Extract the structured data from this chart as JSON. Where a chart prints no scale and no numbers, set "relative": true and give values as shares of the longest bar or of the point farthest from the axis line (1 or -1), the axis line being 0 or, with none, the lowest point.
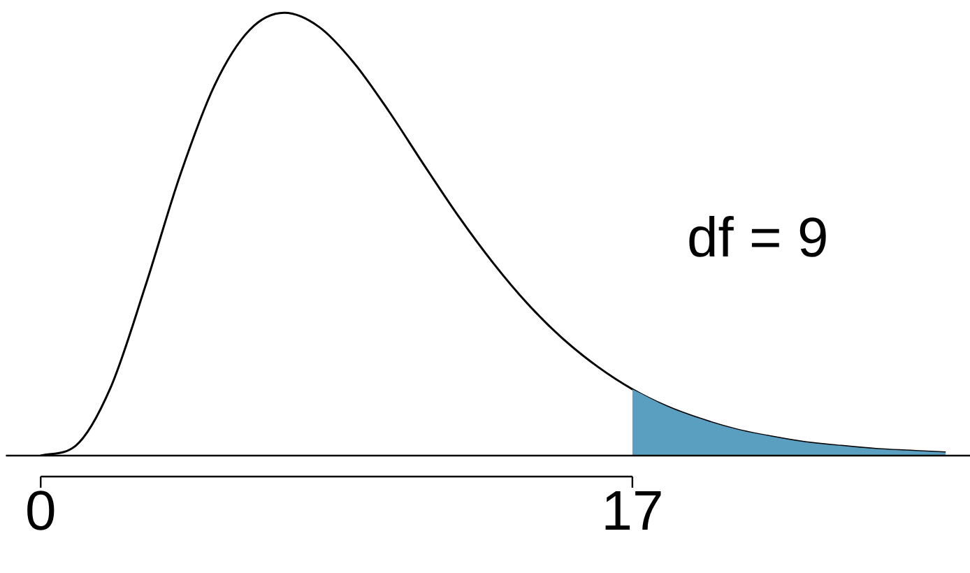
{
  "chart_data": {
    "type": "line",
    "relative": true,
    "xlim": [
      -1,
      26.7
    ],
    "xticks": [
      0,
      17
    ],
    "annotations": [
      "df = 9"
    ],
    "series": [
      {
        "type": "area",
        "color": "#5a9ec0",
        "x": [
          17,
          18,
          19,
          20,
          21,
          22,
          23,
          24,
          25,
          26
        ],
        "values": [
          0.15,
          0.111,
          0.082,
          0.059,
          0.043,
          0.03,
          0.022,
          0.015,
          0.011,
          0.007
        ]
      },
      {
        "color": "#000000",
        "x": [
          0,
          1,
          2,
          3,
          4,
          5,
          6,
          7,
          8,
          9,
          10,
          11,
          12,
          13,
          14,
          15,
          16,
          17,
          18,
          19,
          20,
          21,
          22,
          23,
          24,
          25,
          26
        ],
        "values": [
          0,
          0.022,
          0.152,
          0.381,
          0.632,
          0.837,
          0.961,
          1,
          0.968,
          0.887,
          0.778,
          0.658,
          0.541,
          0.435,
          0.342,
          0.264,
          0.201,
          0.15,
          0.111,
          0.082,
          0.059,
          0.043,
          0.03,
          0.022,
          0.015,
          0.011,
          0.007
        ]
      }
    ]
  }
}
